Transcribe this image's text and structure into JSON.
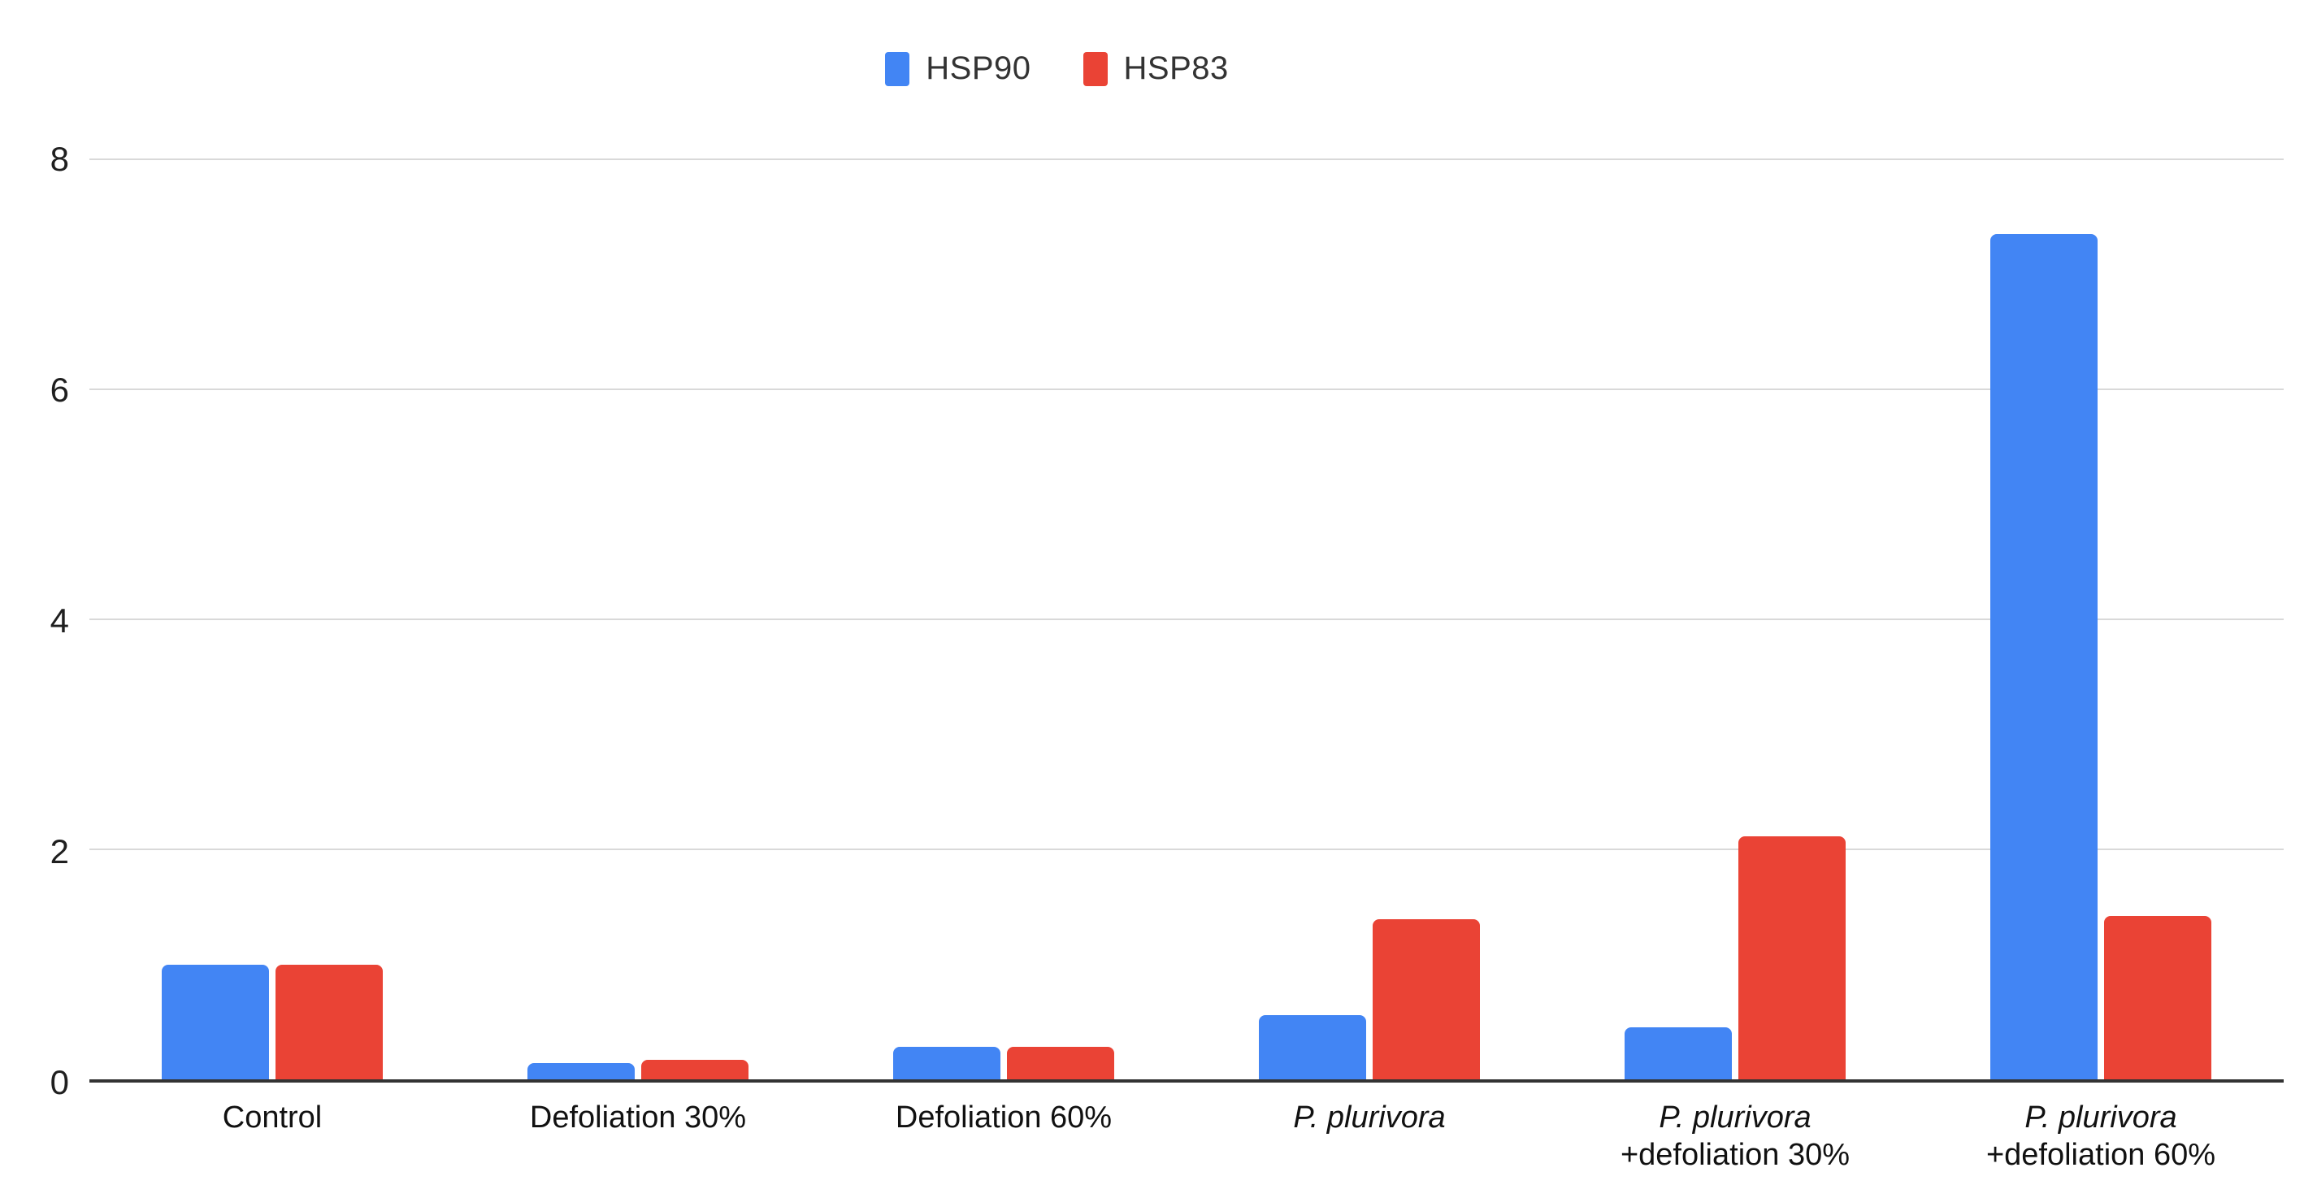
{
  "chart_data": {
    "type": "bar",
    "title": "",
    "xlabel": "",
    "ylabel": "",
    "categories": [
      {
        "line1": "Control",
        "line1_italic": false,
        "line2": ""
      },
      {
        "line1": "Defoliation 30%",
        "line1_italic": false,
        "line2": ""
      },
      {
        "line1": "Defoliation 60%",
        "line1_italic": false,
        "line2": ""
      },
      {
        "line1": "P. plurivora",
        "line1_italic": true,
        "line2": ""
      },
      {
        "line1": "P. plurivora",
        "line1_italic": true,
        "line2": "+defoliation 30%"
      },
      {
        "line1": "P. plurivora",
        "line1_italic": true,
        "line2": "+defoliation 60%"
      }
    ],
    "series": [
      {
        "name": "HSP90",
        "color": "#4285f4",
        "values": [
          1.0,
          0.14,
          0.28,
          0.56,
          0.45,
          7.35
        ]
      },
      {
        "name": "HSP83",
        "color": "#ea4335",
        "values": [
          1.0,
          0.17,
          0.28,
          1.39,
          2.11,
          1.42
        ]
      }
    ],
    "ylim": [
      0,
      8
    ],
    "yticks": [
      0,
      2,
      4,
      6,
      8
    ],
    "grid": true,
    "legend_position": "top-center",
    "colors": {
      "grid": "#d9d9d9",
      "axis": "#333333",
      "text": "#1f1f1f",
      "background": "#ffffff"
    }
  }
}
